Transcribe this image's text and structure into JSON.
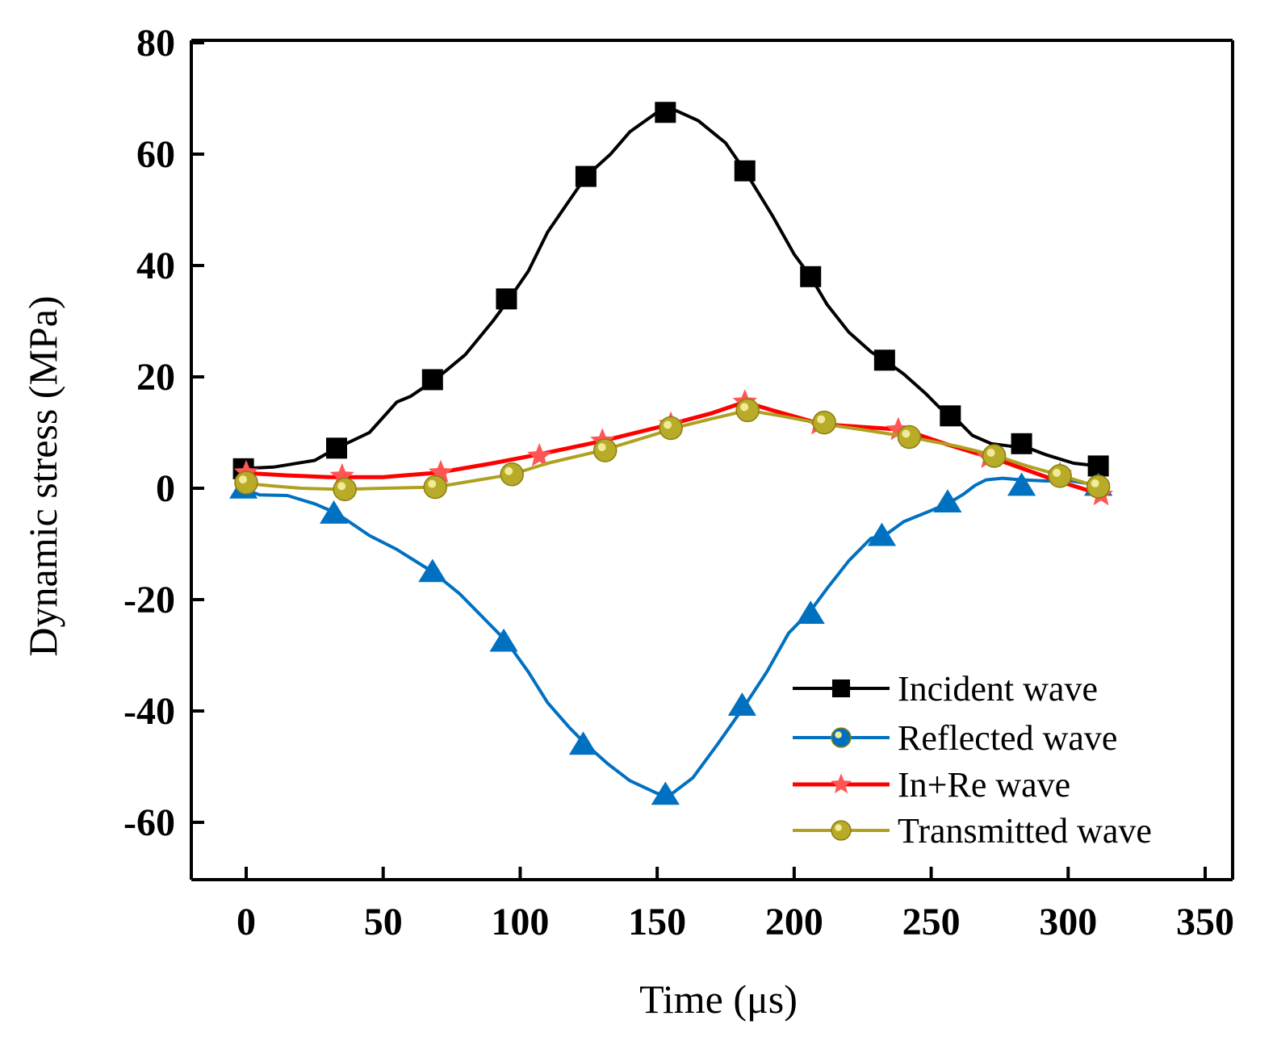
{
  "chart_data": {
    "type": "line",
    "title": "",
    "xlabel": "Time (μs)",
    "ylabel": "Dynamic stress (MPa)",
    "xlim": [
      -20,
      350
    ],
    "ylim": [
      -70,
      80
    ],
    "xticks": [
      0,
      50,
      100,
      150,
      200,
      250,
      300,
      350
    ],
    "yticks": [
      -60,
      -40,
      -20,
      0,
      20,
      40,
      60,
      80
    ],
    "grid": false,
    "legend_position": "bottom-right",
    "series": [
      {
        "name": "Incident wave",
        "color": "#000000",
        "marker": "square",
        "curve": [
          [
            -3,
            3.5
          ],
          [
            10,
            3.8
          ],
          [
            25,
            5
          ],
          [
            33,
            7.2
          ],
          [
            45,
            10
          ],
          [
            55,
            15.5
          ],
          [
            60,
            16.5
          ],
          [
            69,
            19.5
          ],
          [
            80,
            24
          ],
          [
            90,
            30
          ],
          [
            96,
            34
          ],
          [
            103,
            39
          ],
          [
            110,
            46
          ],
          [
            117,
            51
          ],
          [
            124,
            56
          ],
          [
            133,
            60
          ],
          [
            140,
            64
          ],
          [
            150,
            67.5
          ],
          [
            157,
            67.8
          ],
          [
            165,
            66
          ],
          [
            175,
            62
          ],
          [
            182,
            57
          ],
          [
            192,
            49
          ],
          [
            200,
            42
          ],
          [
            206,
            38
          ],
          [
            212,
            33
          ],
          [
            220,
            28
          ],
          [
            228,
            24.5
          ],
          [
            233,
            23
          ],
          [
            240,
            20.5
          ],
          [
            248,
            17
          ],
          [
            253,
            14.5
          ],
          [
            258,
            13
          ],
          [
            265,
            9.5
          ],
          [
            272,
            8
          ],
          [
            280,
            7.5
          ],
          [
            284,
            7.5
          ],
          [
            292,
            6
          ],
          [
            302,
            4.5
          ],
          [
            311,
            4
          ]
        ],
        "markers": [
          [
            -1,
            3.5
          ],
          [
            33,
            7.2
          ],
          [
            68,
            19.5
          ],
          [
            95,
            34
          ],
          [
            124,
            56
          ],
          [
            153,
            67.5
          ],
          [
            182,
            57
          ],
          [
            206,
            38
          ],
          [
            233,
            23
          ],
          [
            257,
            13
          ],
          [
            283,
            8
          ],
          [
            311,
            4
          ]
        ]
      },
      {
        "name": "Reflected wave",
        "color": "#0070c0",
        "marker": "triangle",
        "legend_marker": "circle",
        "curve": [
          [
            -2,
            0
          ],
          [
            5,
            -1.2
          ],
          [
            15,
            -1.3
          ],
          [
            25,
            -2.8
          ],
          [
            33,
            -4.5
          ],
          [
            45,
            -8.5
          ],
          [
            55,
            -11
          ],
          [
            68,
            -15
          ],
          [
            78,
            -19
          ],
          [
            88,
            -24
          ],
          [
            95,
            -27.5
          ],
          [
            103,
            -33
          ],
          [
            110,
            -38.5
          ],
          [
            118,
            -43
          ],
          [
            124,
            -46
          ],
          [
            132,
            -49.5
          ],
          [
            140,
            -52.5
          ],
          [
            150,
            -54.8
          ],
          [
            155,
            -55
          ],
          [
            163,
            -52
          ],
          [
            172,
            -46
          ],
          [
            182,
            -39
          ],
          [
            190,
            -33
          ],
          [
            198,
            -26
          ],
          [
            206,
            -22
          ],
          [
            212,
            -18
          ],
          [
            220,
            -13
          ],
          [
            228,
            -9
          ],
          [
            233,
            -8.5
          ],
          [
            240,
            -6
          ],
          [
            250,
            -4
          ],
          [
            257,
            -2.5
          ],
          [
            262,
            -1
          ],
          [
            266,
            0.5
          ],
          [
            270,
            1.5
          ],
          [
            276,
            1.8
          ],
          [
            283,
            1.5
          ],
          [
            292,
            1.3
          ],
          [
            300,
            1.4
          ],
          [
            308,
            0.8
          ],
          [
            311,
            0.3
          ]
        ],
        "markers": [
          [
            -1,
            0
          ],
          [
            32,
            -4.5
          ],
          [
            68,
            -15
          ],
          [
            94,
            -27.5
          ],
          [
            123,
            -46
          ],
          [
            153,
            -55
          ],
          [
            181,
            -39
          ],
          [
            206,
            -22.5
          ],
          [
            232,
            -8.5
          ],
          [
            256,
            -2.5
          ],
          [
            283,
            0.5
          ],
          [
            311,
            0.5
          ]
        ]
      },
      {
        "name": "In+Re wave",
        "color": "#ff0000",
        "marker": "star",
        "curve": [
          [
            -2,
            2.8
          ],
          [
            15,
            2.3
          ],
          [
            30,
            2
          ],
          [
            50,
            2
          ],
          [
            70,
            2.8
          ],
          [
            90,
            4.5
          ],
          [
            108,
            6.2
          ],
          [
            130,
            8.5
          ],
          [
            155,
            11.5
          ],
          [
            170,
            13.5
          ],
          [
            182,
            15.5
          ],
          [
            192,
            14
          ],
          [
            210,
            11.5
          ],
          [
            225,
            11
          ],
          [
            240,
            10.5
          ],
          [
            255,
            8
          ],
          [
            275,
            5
          ],
          [
            295,
            1.5
          ],
          [
            308,
            -0.5
          ],
          [
            313,
            -1.2
          ]
        ],
        "markers": [
          [
            0,
            2.8
          ],
          [
            35,
            2.2
          ],
          [
            71,
            2.8
          ],
          [
            107,
            5.8
          ],
          [
            130,
            8.5
          ],
          [
            155,
            11.5
          ],
          [
            182,
            15.5
          ],
          [
            209,
            11.5
          ],
          [
            238,
            10.5
          ],
          [
            271,
            5.5
          ],
          [
            297,
            2.5
          ],
          [
            312,
            -1.2
          ]
        ]
      },
      {
        "name": "Transmitted wave",
        "color": "#b0a020",
        "marker": "circle",
        "curve": [
          [
            -3,
            1
          ],
          [
            10,
            0.4
          ],
          [
            20,
            0
          ],
          [
            35,
            -0.2
          ],
          [
            50,
            0
          ],
          [
            69,
            0.2
          ],
          [
            85,
            1.5
          ],
          [
            97,
            2.5
          ],
          [
            110,
            4.5
          ],
          [
            130,
            6.8
          ],
          [
            150,
            9.8
          ],
          [
            156,
            10.8
          ],
          [
            170,
            12.5
          ],
          [
            183,
            14
          ],
          [
            195,
            13
          ],
          [
            211,
            11.5
          ],
          [
            225,
            10.5
          ],
          [
            242,
            9.2
          ],
          [
            260,
            7.5
          ],
          [
            274,
            5.8
          ],
          [
            285,
            4
          ],
          [
            298,
            2.2
          ],
          [
            306,
            1
          ],
          [
            311,
            0.3
          ]
        ],
        "markers": [
          [
            0,
            1
          ],
          [
            36,
            -0.2
          ],
          [
            69,
            0.2
          ],
          [
            97,
            2.5
          ],
          [
            131,
            6.8
          ],
          [
            155,
            10.8
          ],
          [
            183,
            14
          ],
          [
            211,
            11.8
          ],
          [
            242,
            9.2
          ],
          [
            273,
            5.8
          ],
          [
            297,
            2.2
          ],
          [
            311,
            0.3
          ]
        ]
      }
    ]
  }
}
